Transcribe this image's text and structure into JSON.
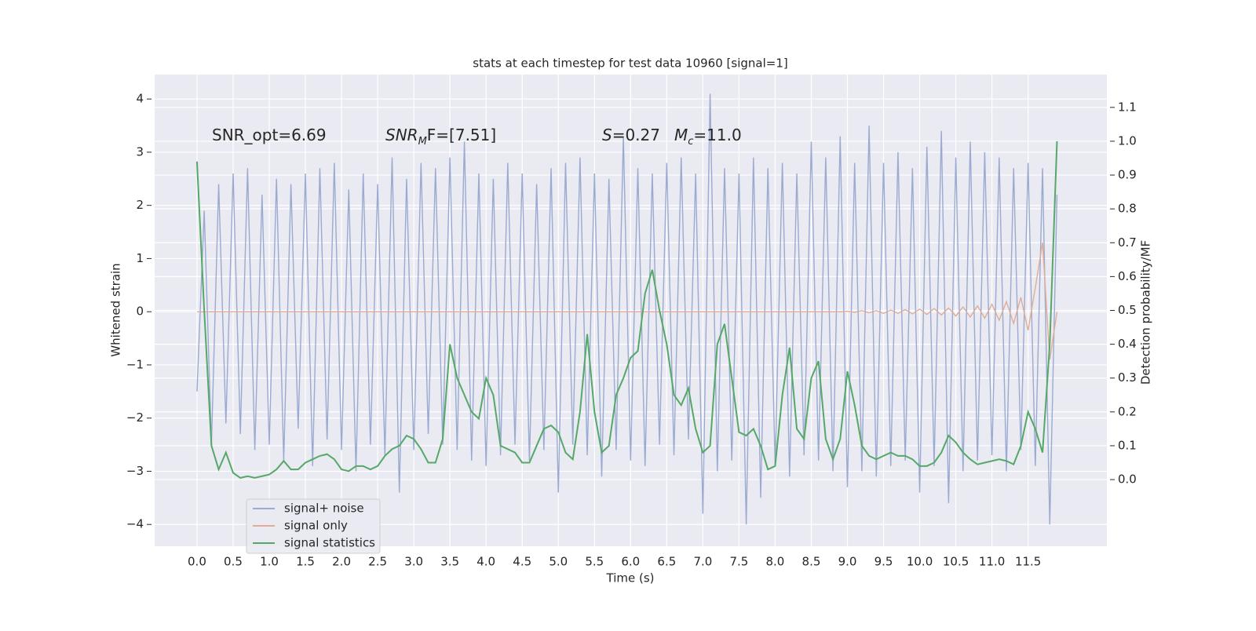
{
  "chart_data": {
    "type": "line",
    "title": "stats at each timestep for test data 10960 [signal=1]",
    "xlabel": "Time (s)",
    "ylabel": "Whitened strain",
    "y2label": "Detection probability/MF",
    "annotations": [
      {
        "text": "SNR_opt=6.69"
      },
      {
        "text": "SNR",
        "sub": "M",
        "rest": "F=[7.51]",
        "italic": true
      },
      {
        "text": "S",
        "rest": "=0.27",
        "italic": true
      },
      {
        "text": "M",
        "sub": "c",
        "rest": "=11.0",
        "italic": true
      }
    ],
    "x": [
      0,
      0.1,
      0.2,
      0.3,
      0.4,
      0.5,
      0.6,
      0.7,
      0.8,
      0.9,
      1,
      1.1,
      1.2,
      1.3,
      1.4,
      1.5,
      1.6,
      1.7,
      1.8,
      1.9,
      2,
      2.1,
      2.2,
      2.3,
      2.4,
      2.5,
      2.6,
      2.7,
      2.8,
      2.9,
      3,
      3.1,
      3.2,
      3.3,
      3.4,
      3.5,
      3.6,
      3.7,
      3.8,
      3.9,
      4,
      4.1,
      4.2,
      4.3,
      4.4,
      4.5,
      4.6,
      4.7,
      4.8,
      4.9,
      5,
      5.1,
      5.2,
      5.3,
      5.4,
      5.5,
      5.6,
      5.7,
      5.8,
      5.9,
      6,
      6.1,
      6.2,
      6.3,
      6.4,
      6.5,
      6.6,
      6.7,
      6.8,
      6.9,
      7,
      7.1,
      7.2,
      7.3,
      7.4,
      7.5,
      7.6,
      7.7,
      7.8,
      7.9,
      8,
      8.1,
      8.2,
      8.3,
      8.4,
      8.5,
      8.6,
      8.7,
      8.8,
      8.9,
      9,
      9.1,
      9.2,
      9.3,
      9.4,
      9.5,
      9.6,
      9.7,
      9.8,
      9.9,
      10,
      10.1,
      10.2,
      10.3,
      10.4,
      10.5,
      10.6,
      10.7,
      10.8,
      10.9,
      11,
      11.1,
      11.2,
      11.3,
      11.4,
      11.5,
      11.6,
      11.7,
      11.8,
      11.9
    ],
    "series": [
      {
        "name": "signal+ noise",
        "color": "#9aaad0",
        "values": [
          -1.5,
          1.9,
          -2.5,
          2.4,
          -2.1,
          2.6,
          -2.3,
          2.7,
          -2.6,
          2.2,
          -2.5,
          2.5,
          -2.8,
          2.4,
          -2.2,
          2.6,
          -2.9,
          2.7,
          -2.4,
          2.8,
          -2.6,
          2.3,
          -3.0,
          2.6,
          -2.5,
          2.4,
          -2.7,
          2.9,
          -3.4,
          2.5,
          -2.6,
          2.8,
          -2.3,
          2.7,
          -2.5,
          2.9,
          -2.6,
          3.2,
          -2.8,
          2.6,
          -2.9,
          2.5,
          -2.7,
          2.8,
          -2.5,
          2.6,
          -2.8,
          2.4,
          -2.6,
          2.7,
          -3.4,
          2.8,
          -2.5,
          2.9,
          -2.7,
          2.6,
          -3.1,
          2.5,
          -2.6,
          3.3,
          -2.8,
          2.7,
          -2.9,
          2.6,
          -2.5,
          2.8,
          -2.7,
          2.9,
          -2.4,
          2.6,
          -3.8,
          4.1,
          -3.0,
          2.7,
          -2.8,
          2.6,
          -4.0,
          2.9,
          -3.5,
          2.7,
          -2.9,
          2.8,
          -3.1,
          2.6,
          -2.7,
          3.2,
          -2.8,
          2.9,
          -3.0,
          3.3,
          -3.3,
          2.8,
          -3.0,
          3.5,
          -3.1,
          2.8,
          -2.9,
          3.0,
          -2.8,
          2.7,
          -3.4,
          3.1,
          -2.9,
          3.4,
          -3.6,
          2.9,
          -3.0,
          3.2,
          -2.8,
          3.0,
          -2.7,
          2.9,
          -3.0,
          2.7,
          -2.6,
          2.8,
          -2.9,
          2.7,
          -4.0,
          2.2
        ]
      },
      {
        "name": "signal only",
        "color": "#e1ac96",
        "values": [
          0,
          0,
          0,
          0,
          0,
          0,
          0,
          0,
          0,
          0,
          0,
          0,
          0,
          0,
          0,
          0,
          0,
          0,
          0,
          0,
          0,
          0,
          0,
          0,
          0,
          0,
          0,
          0,
          0,
          0,
          0,
          0,
          0,
          0,
          0,
          0,
          0,
          0,
          0,
          0,
          0,
          0,
          0,
          0,
          0,
          0,
          0,
          0,
          0,
          0,
          0,
          0,
          0,
          0,
          0,
          0,
          0,
          0,
          0,
          0,
          0,
          0,
          0,
          0,
          0,
          0,
          0,
          0,
          0,
          0,
          0,
          0,
          0,
          0,
          0,
          0,
          0,
          0,
          0,
          0,
          0,
          0,
          0,
          0,
          0,
          0,
          0,
          0,
          0,
          0,
          0.01,
          -0.01,
          0.02,
          -0.02,
          0.02,
          -0.03,
          0.03,
          -0.03,
          0.04,
          -0.04,
          0.05,
          -0.05,
          0.06,
          -0.06,
          0.07,
          -0.08,
          0.09,
          -0.1,
          0.11,
          -0.12,
          0.14,
          -0.16,
          0.19,
          -0.22,
          0.27,
          -0.35,
          0.45,
          1.3,
          -0.9,
          0.0
        ]
      },
      {
        "name": "signal statistics",
        "color": "#55a868",
        "axis": "y2",
        "values": [
          0.94,
          0.5,
          0.1,
          0.03,
          0.08,
          0.02,
          0.005,
          0.01,
          0.005,
          0.01,
          0.015,
          0.03,
          0.055,
          0.03,
          0.03,
          0.05,
          0.06,
          0.07,
          0.075,
          0.06,
          0.03,
          0.025,
          0.04,
          0.04,
          0.03,
          0.04,
          0.07,
          0.09,
          0.1,
          0.13,
          0.12,
          0.09,
          0.05,
          0.05,
          0.12,
          0.4,
          0.3,
          0.25,
          0.2,
          0.18,
          0.3,
          0.25,
          0.1,
          0.09,
          0.08,
          0.05,
          0.05,
          0.1,
          0.15,
          0.16,
          0.14,
          0.08,
          0.06,
          0.2,
          0.43,
          0.2,
          0.08,
          0.1,
          0.25,
          0.3,
          0.36,
          0.38,
          0.55,
          0.62,
          0.5,
          0.4,
          0.25,
          0.22,
          0.27,
          0.15,
          0.08,
          0.1,
          0.4,
          0.46,
          0.3,
          0.14,
          0.13,
          0.15,
          0.1,
          0.03,
          0.04,
          0.25,
          0.39,
          0.15,
          0.12,
          0.3,
          0.35,
          0.12,
          0.06,
          0.12,
          0.32,
          0.22,
          0.1,
          0.07,
          0.06,
          0.07,
          0.08,
          0.07,
          0.07,
          0.06,
          0.04,
          0.04,
          0.05,
          0.08,
          0.13,
          0.11,
          0.08,
          0.06,
          0.045,
          0.05,
          0.055,
          0.06,
          0.055,
          0.045,
          0.1,
          0.2,
          0.15,
          0.08,
          0.4,
          1.0
        ]
      }
    ],
    "xlim": [
      -0.586,
      12.59
    ],
    "xticks": [
      {
        "value": 0,
        "label": "0.0"
      },
      0.5,
      {
        "value": 1,
        "label": "1.0"
      },
      1.5,
      {
        "value": 2,
        "label": "2.0"
      },
      2.5,
      {
        "value": 3,
        "label": "3.0"
      },
      3.5,
      {
        "value": 4,
        "label": "4.0"
      },
      4.5,
      {
        "value": 5,
        "label": "5.0"
      },
      5.5,
      {
        "value": 6,
        "label": "6.0"
      },
      6.5,
      {
        "value": 7,
        "label": "7.0"
      },
      7.5,
      {
        "value": 8,
        "label": "8.0"
      },
      8.5,
      {
        "value": 9,
        "label": "9.0"
      },
      9.5,
      {
        "value": 10,
        "label": "10.0"
      },
      10.5,
      {
        "value": 11,
        "label": "11.0"
      },
      11.5
    ],
    "ylim": [
      -4.41,
      4.46
    ],
    "yticks": [
      {
        "value": -4,
        "label": "−4"
      },
      {
        "value": -3,
        "label": "−3"
      },
      {
        "value": -2,
        "label": "−2"
      },
      {
        "value": -1,
        "label": "−1"
      },
      0,
      1,
      2,
      3,
      4
    ],
    "y2lim": [
      -0.197,
      1.197
    ],
    "y2ticks": [
      {
        "value": 0,
        "label": "0.0"
      },
      0.1,
      0.2,
      0.3,
      0.4,
      0.5,
      0.6,
      0.7,
      0.8,
      0.9,
      {
        "value": 1,
        "label": "1.0"
      },
      1.1
    ],
    "grid": true,
    "legend": "lower left"
  }
}
